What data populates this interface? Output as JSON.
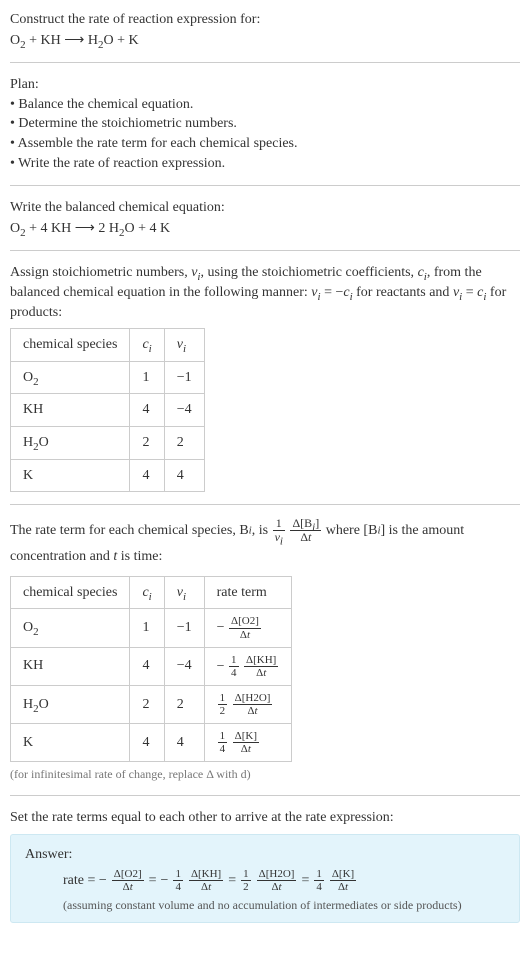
{
  "intro": {
    "construct_line": "Construct the rate of reaction expression for:",
    "equation_parts": {
      "O2": "O",
      "O2_sub": "2",
      "plus1": " + KH ",
      "arrow": "⟶",
      "sp": " H",
      "H2O_sub": "2",
      "O_after": "O + K"
    }
  },
  "plan": {
    "title": "Plan:",
    "b1": "• Balance the chemical equation.",
    "b2": "• Determine the stoichiometric numbers.",
    "b3": "• Assemble the rate term for each chemical species.",
    "b4": "• Write the rate of reaction expression."
  },
  "balanced": {
    "title": "Write the balanced chemical equation:",
    "parts": {
      "O2": "O",
      "O2_sub": "2",
      "plus1": " + 4 KH ",
      "arrow": "⟶",
      "sp": " 2 H",
      "H2O_sub": "2",
      "O_after": "O + 4 K"
    }
  },
  "assign": {
    "text1": "Assign stoichiometric numbers, ",
    "nu": "ν",
    "i": "i",
    "text2": ", using the stoichiometric coefficients, ",
    "c": "c",
    "text3": ", from the balanced chemical equation in the following manner: ",
    "eq1a": "ν",
    "eq1b": " = −",
    "eq1c": "c",
    "text4": " for reactants and ",
    "eq2a": "ν",
    "eq2b": " = ",
    "eq2c": "c",
    "text5": " for products:"
  },
  "table1": {
    "h1": "chemical species",
    "h2": "c",
    "h2_sub": "i",
    "h3": "ν",
    "h3_sub": "i",
    "rows": [
      {
        "sp_a": "O",
        "sp_sub": "2",
        "sp_b": "",
        "c": "1",
        "nu": "−1"
      },
      {
        "sp_a": "KH",
        "sp_sub": "",
        "sp_b": "",
        "c": "4",
        "nu": "−4"
      },
      {
        "sp_a": "H",
        "sp_sub": "2",
        "sp_b": "O",
        "c": "2",
        "nu": "2"
      },
      {
        "sp_a": "K",
        "sp_sub": "",
        "sp_b": "",
        "c": "4",
        "nu": "4"
      }
    ]
  },
  "rate_term": {
    "t1": "The rate term for each chemical species, B",
    "t2": ", is ",
    "f_outer_num": "1",
    "f_outer_den_a": "ν",
    "f_outer_den_sub": "i",
    "f_inner_num_a": "Δ[B",
    "f_inner_num_sub": "i",
    "f_inner_num_b": "]",
    "f_inner_den": "Δt",
    "t3": " where [B",
    "t4": "] is the amount concentration and ",
    "t5": "t",
    "t6": " is time:"
  },
  "table2": {
    "h1": "chemical species",
    "h2": "c",
    "h2_sub": "i",
    "h3": "ν",
    "h3_sub": "i",
    "h4": "rate term",
    "rows": [
      {
        "sp_a": "O",
        "sp_sub": "2",
        "sp_b": "",
        "c": "1",
        "nu": "−1",
        "pre": "−",
        "coef_num": "",
        "coef_den": "",
        "num": "Δ[O2]",
        "den": "Δt"
      },
      {
        "sp_a": "KH",
        "sp_sub": "",
        "sp_b": "",
        "c": "4",
        "nu": "−4",
        "pre": "−",
        "coef_num": "1",
        "coef_den": "4",
        "num": "Δ[KH]",
        "den": "Δt"
      },
      {
        "sp_a": "H",
        "sp_sub": "2",
        "sp_b": "O",
        "c": "2",
        "nu": "2",
        "pre": "",
        "coef_num": "1",
        "coef_den": "2",
        "num": "Δ[H2O]",
        "den": "Δt"
      },
      {
        "sp_a": "K",
        "sp_sub": "",
        "sp_b": "",
        "c": "4",
        "nu": "4",
        "pre": "",
        "coef_num": "1",
        "coef_den": "4",
        "num": "Δ[K]",
        "den": "Δt"
      }
    ],
    "footnote": "(for infinitesimal rate of change, replace Δ with d)"
  },
  "final": {
    "title": "Set the rate terms equal to each other to arrive at the rate expression:",
    "answer_label": "Answer:",
    "rate_word": "rate = −",
    "eq": " = ",
    "neg": "−",
    "terms": {
      "o2": {
        "coef_num": "",
        "coef_den": "",
        "num": "Δ[O2]",
        "den": "Δt"
      },
      "kh": {
        "coef_num": "1",
        "coef_den": "4",
        "num": "Δ[KH]",
        "den": "Δt"
      },
      "h2o": {
        "coef_num": "1",
        "coef_den": "2",
        "num": "Δ[H2O]",
        "den": "Δt"
      },
      "k": {
        "coef_num": "1",
        "coef_den": "4",
        "num": "Δ[K]",
        "den": "Δt"
      }
    },
    "note": "(assuming constant volume and no accumulation of intermediates or side products)"
  }
}
